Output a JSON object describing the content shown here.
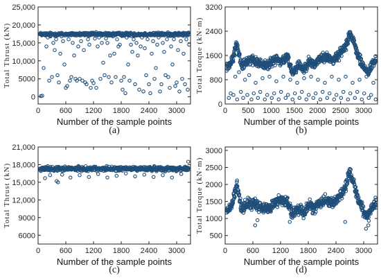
{
  "chart_data": [
    {
      "panel": "a",
      "type": "scatter",
      "caption": "(a)",
      "xlabel": "Number of the sample points",
      "ylabel": "Total Thrust (kN)",
      "xlim": [
        0,
        3300
      ],
      "ylim": [
        -2000,
        25000
      ],
      "xticks": [
        0,
        600,
        1200,
        1800,
        2400,
        3000
      ],
      "yticks": [
        0,
        5000,
        10000,
        15000,
        20000,
        25000
      ],
      "ytick_labels": [
        "0",
        "5000",
        "10,000",
        "15,000",
        "20,000",
        "25,000"
      ],
      "band": {
        "center": 17400,
        "spread": 700
      },
      "outliers": [
        [
          60,
          200
        ],
        [
          90,
          300
        ],
        [
          120,
          8000
        ],
        [
          150,
          17200
        ],
        [
          180,
          14000
        ],
        [
          210,
          16500
        ],
        [
          240,
          4500
        ],
        [
          270,
          16800
        ],
        [
          300,
          5500
        ],
        [
          330,
          15000
        ],
        [
          360,
          13000
        ],
        [
          390,
          16000
        ],
        [
          420,
          6000
        ],
        [
          450,
          4000
        ],
        [
          480,
          12000
        ],
        [
          510,
          16800
        ],
        [
          540,
          15500
        ],
        [
          570,
          9000
        ],
        [
          600,
          2500
        ],
        [
          630,
          3000
        ],
        [
          660,
          16000
        ],
        [
          690,
          4500
        ],
        [
          720,
          5500
        ],
        [
          750,
          15000
        ],
        [
          780,
          11500
        ],
        [
          810,
          5000
        ],
        [
          840,
          4500
        ],
        [
          870,
          14000
        ],
        [
          900,
          5000
        ],
        [
          930,
          15500
        ],
        [
          960,
          4500
        ],
        [
          990,
          13000
        ],
        [
          1020,
          4000
        ],
        [
          1050,
          3500
        ],
        [
          1080,
          16000
        ],
        [
          1110,
          14500
        ],
        [
          1140,
          2500
        ],
        [
          1170,
          4500
        ],
        [
          1200,
          3800
        ],
        [
          1230,
          16200
        ],
        [
          1260,
          2500
        ],
        [
          1290,
          14000
        ],
        [
          1320,
          16500
        ],
        [
          1350,
          5000
        ],
        [
          1380,
          15000
        ],
        [
          1410,
          9500
        ],
        [
          1440,
          6000
        ],
        [
          1470,
          16200
        ],
        [
          1500,
          15000
        ],
        [
          1530,
          5500
        ],
        [
          1560,
          11500
        ],
        [
          1590,
          4000
        ],
        [
          1620,
          16800
        ],
        [
          1650,
          12000
        ],
        [
          1680,
          5500
        ],
        [
          1710,
          16000
        ],
        [
          1740,
          14000
        ],
        [
          1770,
          14500
        ],
        [
          1800,
          4500
        ],
        [
          1830,
          2000
        ],
        [
          1860,
          5500
        ],
        [
          1890,
          1000
        ],
        [
          1920,
          16500
        ],
        [
          1950,
          9000
        ],
        [
          1980,
          4500
        ],
        [
          2010,
          14500
        ],
        [
          2040,
          12500
        ],
        [
          2070,
          16000
        ],
        [
          2100,
          3500
        ],
        [
          2130,
          15000
        ],
        [
          2160,
          11500
        ],
        [
          2190,
          2000
        ],
        [
          2220,
          14000
        ],
        [
          2250,
          16500
        ],
        [
          2280,
          1500
        ],
        [
          2310,
          13500
        ],
        [
          2340,
          6000
        ],
        [
          2370,
          16000
        ],
        [
          2400,
          3500
        ],
        [
          2430,
          1000
        ],
        [
          2460,
          12000
        ],
        [
          2490,
          15500
        ],
        [
          2520,
          5000
        ],
        [
          2550,
          8000
        ],
        [
          2580,
          14500
        ],
        [
          2610,
          16500
        ],
        [
          2640,
          1500
        ],
        [
          2670,
          3500
        ],
        [
          2700,
          15000
        ],
        [
          2730,
          12500
        ],
        [
          2760,
          6000
        ],
        [
          2790,
          16000
        ],
        [
          2820,
          5500
        ],
        [
          2850,
          2500
        ],
        [
          2880,
          14000
        ],
        [
          2910,
          9000
        ],
        [
          2940,
          16000
        ],
        [
          2970,
          3000
        ],
        [
          3000,
          4000
        ],
        [
          3030,
          13000
        ],
        [
          3060,
          1500
        ],
        [
          3090,
          15500
        ],
        [
          3120,
          5000
        ],
        [
          3150,
          12000
        ],
        [
          3180,
          3500
        ],
        [
          3210,
          16000
        ],
        [
          3240,
          2000
        ],
        [
          3270,
          14500
        ]
      ]
    },
    {
      "panel": "b",
      "type": "scatter",
      "caption": "(b)",
      "xlabel": "Number of the sample points",
      "ylabel": "Total Torque (kN·m)",
      "xlim": [
        0,
        3300
      ],
      "ylim": [
        0,
        3200
      ],
      "xticks": [
        0,
        500,
        1000,
        1500,
        2000,
        2500,
        3000
      ],
      "yticks": [
        0,
        800,
        1600,
        2400,
        3200
      ],
      "ytick_labels": [
        "0",
        "800",
        "1600",
        "2400",
        "3200"
      ],
      "trend": [
        [
          0,
          1150
        ],
        [
          150,
          1400
        ],
        [
          250,
          2000
        ],
        [
          350,
          1300
        ],
        [
          500,
          1450
        ],
        [
          650,
          1400
        ],
        [
          800,
          1300
        ],
        [
          950,
          1300
        ],
        [
          1100,
          1500
        ],
        [
          1200,
          1400
        ],
        [
          1350,
          1550
        ],
        [
          1450,
          1050
        ],
        [
          1600,
          1300
        ],
        [
          1700,
          1150
        ],
        [
          1800,
          1400
        ],
        [
          1950,
          1300
        ],
        [
          2050,
          1500
        ],
        [
          2200,
          1550
        ],
        [
          2350,
          1450
        ],
        [
          2500,
          1700
        ],
        [
          2600,
          1900
        ],
        [
          2700,
          2350
        ],
        [
          2800,
          1950
        ],
        [
          2900,
          1500
        ],
        [
          3000,
          1200
        ],
        [
          3100,
          1050
        ],
        [
          3200,
          1350
        ],
        [
          3300,
          1500
        ]
      ],
      "trend_spread": 230,
      "outliers": [
        [
          80,
          200
        ],
        [
          120,
          350
        ],
        [
          180,
          300
        ],
        [
          220,
          900
        ],
        [
          260,
          150
        ],
        [
          300,
          1050
        ],
        [
          340,
          400
        ],
        [
          390,
          200
        ],
        [
          430,
          800
        ],
        [
          480,
          300
        ],
        [
          520,
          950
        ],
        [
          570,
          150
        ],
        [
          620,
          350
        ],
        [
          660,
          700
        ],
        [
          710,
          200
        ],
        [
          760,
          400
        ],
        [
          810,
          850
        ],
        [
          860,
          150
        ],
        [
          910,
          300
        ],
        [
          960,
          900
        ],
        [
          1010,
          200
        ],
        [
          1060,
          350
        ],
        [
          1110,
          750
        ],
        [
          1160,
          150
        ],
        [
          1210,
          400
        ],
        [
          1260,
          900
        ],
        [
          1310,
          200
        ],
        [
          1360,
          300
        ],
        [
          1410,
          800
        ],
        [
          1460,
          150
        ],
        [
          1510,
          350
        ],
        [
          1560,
          700
        ],
        [
          1610,
          200
        ],
        [
          1660,
          400
        ],
        [
          1710,
          850
        ],
        [
          1760,
          150
        ],
        [
          1810,
          300
        ],
        [
          1860,
          900
        ],
        [
          1910,
          200
        ],
        [
          1960,
          350
        ],
        [
          2010,
          800
        ],
        [
          2060,
          150
        ],
        [
          2110,
          400
        ],
        [
          2160,
          700
        ],
        [
          2210,
          200
        ],
        [
          2260,
          350
        ],
        [
          2310,
          900
        ],
        [
          2360,
          150
        ],
        [
          2410,
          300
        ],
        [
          2460,
          800
        ],
        [
          2510,
          200
        ],
        [
          2560,
          400
        ],
        [
          2610,
          900
        ],
        [
          2660,
          150
        ],
        [
          2710,
          350
        ],
        [
          2760,
          700
        ],
        [
          2810,
          200
        ],
        [
          2860,
          400
        ],
        [
          2910,
          800
        ],
        [
          2960,
          150
        ],
        [
          3010,
          350
        ],
        [
          3060,
          900
        ],
        [
          3110,
          200
        ],
        [
          3160,
          300
        ],
        [
          3210,
          700
        ],
        [
          3260,
          150
        ]
      ]
    },
    {
      "panel": "c",
      "type": "scatter",
      "caption": "(c)",
      "xlabel": "Number of the sample points",
      "ylabel": "Total Thrust (kN)",
      "xlim": [
        0,
        3300
      ],
      "ylim": [
        4500,
        21000
      ],
      "xticks": [
        0,
        600,
        1200,
        1800,
        2400,
        3000
      ],
      "yticks": [
        6000,
        9000,
        12000,
        15000,
        18000,
        21000
      ],
      "ytick_labels": [
        "6000",
        "9000",
        "12,000",
        "15,000",
        "18,000",
        "21,000"
      ],
      "band": {
        "center": 17300,
        "spread": 550
      },
      "outliers": [
        [
          150,
          15700
        ],
        [
          260,
          16200
        ],
        [
          400,
          15200
        ],
        [
          430,
          15000
        ],
        [
          520,
          16300
        ],
        [
          700,
          15800
        ],
        [
          900,
          16200
        ],
        [
          1100,
          15900
        ],
        [
          1300,
          16400
        ],
        [
          1500,
          15800
        ],
        [
          1700,
          16100
        ],
        [
          1900,
          16500
        ],
        [
          2100,
          16000
        ],
        [
          2300,
          16300
        ],
        [
          2500,
          15900
        ],
        [
          2700,
          16200
        ],
        [
          2900,
          15800
        ],
        [
          3100,
          16400
        ],
        [
          3250,
          18500
        ]
      ]
    },
    {
      "panel": "d",
      "type": "scatter",
      "caption": "(d)",
      "xlabel": "Number of the sample points",
      "ylabel": "Total Torque (kN·m)",
      "xlim": [
        0,
        3300
      ],
      "ylim": [
        250,
        3100
      ],
      "xticks": [
        0,
        600,
        1200,
        1800,
        2400,
        3000
      ],
      "yticks": [
        500,
        1000,
        1500,
        2000,
        2500,
        3000
      ],
      "ytick_labels": [
        "500",
        "1000",
        "1500",
        "2000",
        "2500",
        "3000"
      ],
      "trend": [
        [
          0,
          1150
        ],
        [
          150,
          1400
        ],
        [
          250,
          2000
        ],
        [
          350,
          1300
        ],
        [
          500,
          1450
        ],
        [
          650,
          1400
        ],
        [
          800,
          1300
        ],
        [
          950,
          1300
        ],
        [
          1100,
          1500
        ],
        [
          1200,
          1550
        ],
        [
          1350,
          1500
        ],
        [
          1450,
          1100
        ],
        [
          1600,
          1300
        ],
        [
          1700,
          1150
        ],
        [
          1800,
          1400
        ],
        [
          1950,
          1300
        ],
        [
          2050,
          1500
        ],
        [
          2200,
          1550
        ],
        [
          2350,
          1450
        ],
        [
          2500,
          1700
        ],
        [
          2600,
          1900
        ],
        [
          2700,
          2400
        ],
        [
          2800,
          1950
        ],
        [
          2900,
          1500
        ],
        [
          3000,
          1200
        ],
        [
          3100,
          1050
        ],
        [
          3200,
          1350
        ],
        [
          3300,
          1500
        ]
      ],
      "trend_spread": 230,
      "outliers": [
        [
          650,
          800
        ],
        [
          700,
          950
        ],
        [
          1400,
          900
        ],
        [
          2600,
          900
        ],
        [
          3050,
          700
        ],
        [
          3100,
          800
        ]
      ]
    }
  ]
}
